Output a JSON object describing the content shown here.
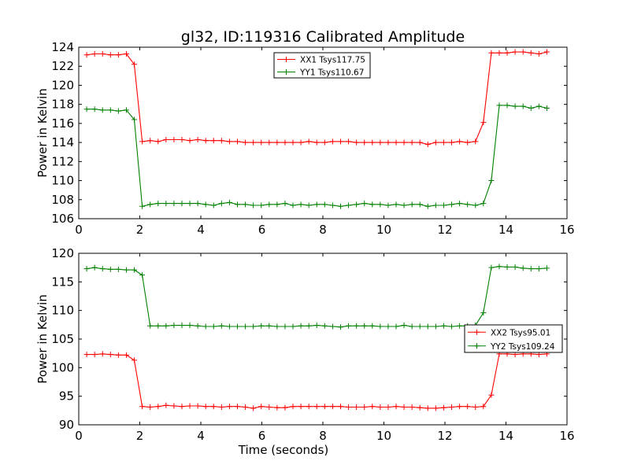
{
  "figure": {
    "title": "gl32, ID:119316 Calibrated Amplitude"
  },
  "chart_data": [
    {
      "type": "line",
      "title": "gl32, ID:119316 Calibrated Amplitude",
      "xlabel": "",
      "ylabel": "Power in Kelvin",
      "xlim": [
        0,
        16
      ],
      "ylim": [
        106,
        124
      ],
      "xticks": [
        0,
        2,
        4,
        6,
        8,
        10,
        12,
        14,
        16
      ],
      "yticks": [
        106,
        108,
        110,
        112,
        114,
        116,
        118,
        120,
        122,
        124
      ],
      "grid": false,
      "legend_position": "top-center",
      "x": [
        0.26,
        0.52,
        0.78,
        1.04,
        1.3,
        1.56,
        1.82,
        2.08,
        2.34,
        2.6,
        2.86,
        3.12,
        3.38,
        3.64,
        3.9,
        4.16,
        4.42,
        4.68,
        4.94,
        5.2,
        5.46,
        5.72,
        5.98,
        6.24,
        6.5,
        6.76,
        7.02,
        7.28,
        7.54,
        7.8,
        8.06,
        8.32,
        8.58,
        8.84,
        9.1,
        9.36,
        9.62,
        9.88,
        10.14,
        10.4,
        10.66,
        10.92,
        11.18,
        11.44,
        11.7,
        11.96,
        12.22,
        12.48,
        12.74,
        13.0,
        13.26,
        13.52,
        13.78,
        14.04,
        14.3,
        14.56,
        14.82,
        15.08,
        15.34
      ],
      "series": [
        {
          "name": "XX1 Tsys117.75",
          "color": "#ff0000",
          "values": [
            123.2,
            123.3,
            123.3,
            123.2,
            123.2,
            123.3,
            122.2,
            114.1,
            114.2,
            114.1,
            114.3,
            114.3,
            114.3,
            114.2,
            114.3,
            114.2,
            114.2,
            114.2,
            114.1,
            114.1,
            114.0,
            114.0,
            114.0,
            114.0,
            114.0,
            114.0,
            114.0,
            114.0,
            114.1,
            114.0,
            114.0,
            114.1,
            114.1,
            114.1,
            114.0,
            114.0,
            114.0,
            114.0,
            114.0,
            114.0,
            114.0,
            114.0,
            114.0,
            113.8,
            114.0,
            114.0,
            114.0,
            114.1,
            114.0,
            114.1,
            116.1,
            123.4,
            123.4,
            123.4,
            123.5,
            123.5,
            123.4,
            123.3,
            123.5
          ]
        },
        {
          "name": "YY1 Tsys110.67",
          "color": "#008000",
          "values": [
            117.5,
            117.5,
            117.4,
            117.4,
            117.3,
            117.4,
            116.4,
            107.3,
            107.5,
            107.6,
            107.6,
            107.6,
            107.6,
            107.6,
            107.6,
            107.5,
            107.4,
            107.6,
            107.7,
            107.5,
            107.5,
            107.4,
            107.4,
            107.5,
            107.5,
            107.6,
            107.4,
            107.5,
            107.4,
            107.5,
            107.5,
            107.4,
            107.3,
            107.4,
            107.5,
            107.6,
            107.5,
            107.5,
            107.4,
            107.5,
            107.4,
            107.5,
            107.5,
            107.3,
            107.4,
            107.4,
            107.5,
            107.6,
            107.5,
            107.4,
            107.6,
            110.0,
            117.9,
            117.9,
            117.8,
            117.8,
            117.6,
            117.8,
            117.6
          ]
        }
      ]
    },
    {
      "type": "line",
      "title": "",
      "xlabel": "Time (seconds)",
      "ylabel": "Power in Kelvin",
      "xlim": [
        0,
        16
      ],
      "ylim": [
        90,
        120
      ],
      "xticks": [
        0,
        2,
        4,
        6,
        8,
        10,
        12,
        14,
        16
      ],
      "yticks": [
        90,
        95,
        100,
        105,
        110,
        115,
        120
      ],
      "grid": false,
      "legend_position": "right-center",
      "x": [
        0.26,
        0.52,
        0.78,
        1.04,
        1.3,
        1.56,
        1.82,
        2.08,
        2.34,
        2.6,
        2.86,
        3.12,
        3.38,
        3.64,
        3.9,
        4.16,
        4.42,
        4.68,
        4.94,
        5.2,
        5.46,
        5.72,
        5.98,
        6.24,
        6.5,
        6.76,
        7.02,
        7.28,
        7.54,
        7.8,
        8.06,
        8.32,
        8.58,
        8.84,
        9.1,
        9.36,
        9.62,
        9.88,
        10.14,
        10.4,
        10.66,
        10.92,
        11.18,
        11.44,
        11.7,
        11.96,
        12.22,
        12.48,
        12.74,
        13.0,
        13.26,
        13.52,
        13.78,
        14.04,
        14.3,
        14.56,
        14.82,
        15.08,
        15.34
      ],
      "series": [
        {
          "name": "XX2 Tsys95.01",
          "color": "#ff0000",
          "values": [
            102.3,
            102.3,
            102.4,
            102.3,
            102.2,
            102.2,
            101.3,
            93.2,
            93.1,
            93.2,
            93.4,
            93.3,
            93.2,
            93.3,
            93.3,
            93.2,
            93.2,
            93.1,
            93.2,
            93.2,
            93.1,
            92.9,
            93.2,
            93.1,
            93.0,
            93.0,
            93.2,
            93.2,
            93.2,
            93.2,
            93.2,
            93.2,
            93.2,
            93.1,
            93.1,
            93.1,
            93.2,
            93.1,
            93.1,
            93.2,
            93.1,
            93.1,
            93.0,
            92.9,
            92.9,
            93.0,
            93.1,
            93.2,
            93.2,
            93.1,
            93.2,
            95.2,
            102.4,
            102.4,
            102.3,
            102.4,
            102.4,
            102.3,
            102.4
          ]
        },
        {
          "name": "YY2 Tsys109.24",
          "color": "#008000",
          "values": [
            117.3,
            117.5,
            117.3,
            117.2,
            117.2,
            117.1,
            117.1,
            116.2,
            107.3,
            107.3,
            107.3,
            107.4,
            107.4,
            107.4,
            107.3,
            107.2,
            107.2,
            107.3,
            107.2,
            107.2,
            107.2,
            107.2,
            107.3,
            107.3,
            107.2,
            107.2,
            107.2,
            107.3,
            107.3,
            107.4,
            107.3,
            107.2,
            107.1,
            107.3,
            107.3,
            107.3,
            107.3,
            107.2,
            107.2,
            107.2,
            107.4,
            107.2,
            107.2,
            107.2,
            107.2,
            107.3,
            107.2,
            107.3,
            107.3,
            107.4,
            109.6,
            117.5,
            117.7,
            117.6,
            117.6,
            117.4,
            117.3,
            117.3,
            117.4
          ]
        }
      ]
    }
  ]
}
